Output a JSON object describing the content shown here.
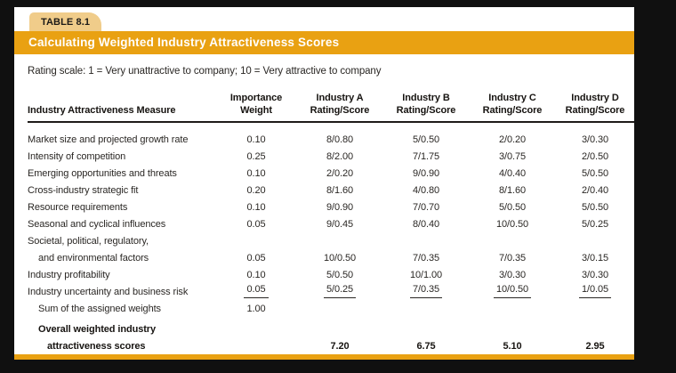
{
  "colors": {
    "banner_orange": "#E9A112",
    "tab_tan": "#F0CC8A",
    "page_black": "#101010",
    "panel_white": "#FFFFFF",
    "text_dark": "#2A2724",
    "heading_black": "#171411"
  },
  "tab_label": "TABLE 8.1",
  "banner_title": "Calculating Weighted Industry Attractiveness Scores",
  "rating_note": "Rating scale: 1 = Very unattractive to company; 10 = Very attractive to company",
  "table": {
    "header": {
      "measure": "Industry Attractiveness Measure",
      "cols": [
        {
          "line1": "Importance",
          "line2": "Weight"
        },
        {
          "line1": "Industry A",
          "line2": "Rating/Score"
        },
        {
          "line1": "Industry B",
          "line2": "Rating/Score"
        },
        {
          "line1": "Industry C",
          "line2": "Rating/Score"
        },
        {
          "line1": "Industry D",
          "line2": "Rating/Score"
        }
      ]
    },
    "rows": [
      {
        "label": "Market size and projected growth rate",
        "values": [
          "0.10",
          "8/0.80",
          "5/0.50",
          "2/0.20",
          "3/0.30"
        ]
      },
      {
        "label": "Intensity of competition",
        "values": [
          "0.25",
          "8/2.00",
          "7/1.75",
          "3/0.75",
          "2/0.50"
        ]
      },
      {
        "label": "Emerging opportunities and threats",
        "values": [
          "0.10",
          "2/0.20",
          "9/0.90",
          "4/0.40",
          "5/0.50"
        ]
      },
      {
        "label": "Cross-industry strategic fit",
        "values": [
          "0.20",
          "8/1.60",
          "4/0.80",
          "8/1.60",
          "2/0.40"
        ]
      },
      {
        "label": "Resource requirements",
        "values": [
          "0.10",
          "9/0.90",
          "7/0.70",
          "5/0.50",
          "5/0.50"
        ]
      },
      {
        "label": "Seasonal and cyclical influences",
        "values": [
          "0.05",
          "9/0.45",
          "8/0.40",
          "10/0.50",
          "5/0.25"
        ]
      },
      {
        "label": "Societal, political, regulatory,",
        "values": [
          "",
          "",
          "",
          "",
          ""
        ]
      },
      {
        "label": "and environmental factors",
        "values": [
          "0.05",
          "10/0.50",
          "7/0.35",
          "7/0.35",
          "3/0.15"
        ]
      },
      {
        "label": "Industry profitability",
        "values": [
          "0.10",
          "5/0.50",
          "10/1.00",
          "3/0.30",
          "3/0.30"
        ]
      },
      {
        "label": "Industry uncertainty and business risk",
        "values": [
          "0.05",
          "5/0.25",
          "7/0.35",
          "10/0.50",
          "1/0.05"
        ]
      },
      {
        "label": "Sum of the assigned weights",
        "values": [
          "1.00",
          "",
          "",
          "",
          ""
        ]
      },
      {
        "label": "Overall weighted industry",
        "values": [
          "",
          "",
          "",
          "",
          ""
        ]
      },
      {
        "label": "attractiveness scores",
        "values": [
          "",
          "7.20",
          "6.75",
          "5.10",
          "2.95"
        ]
      }
    ]
  }
}
